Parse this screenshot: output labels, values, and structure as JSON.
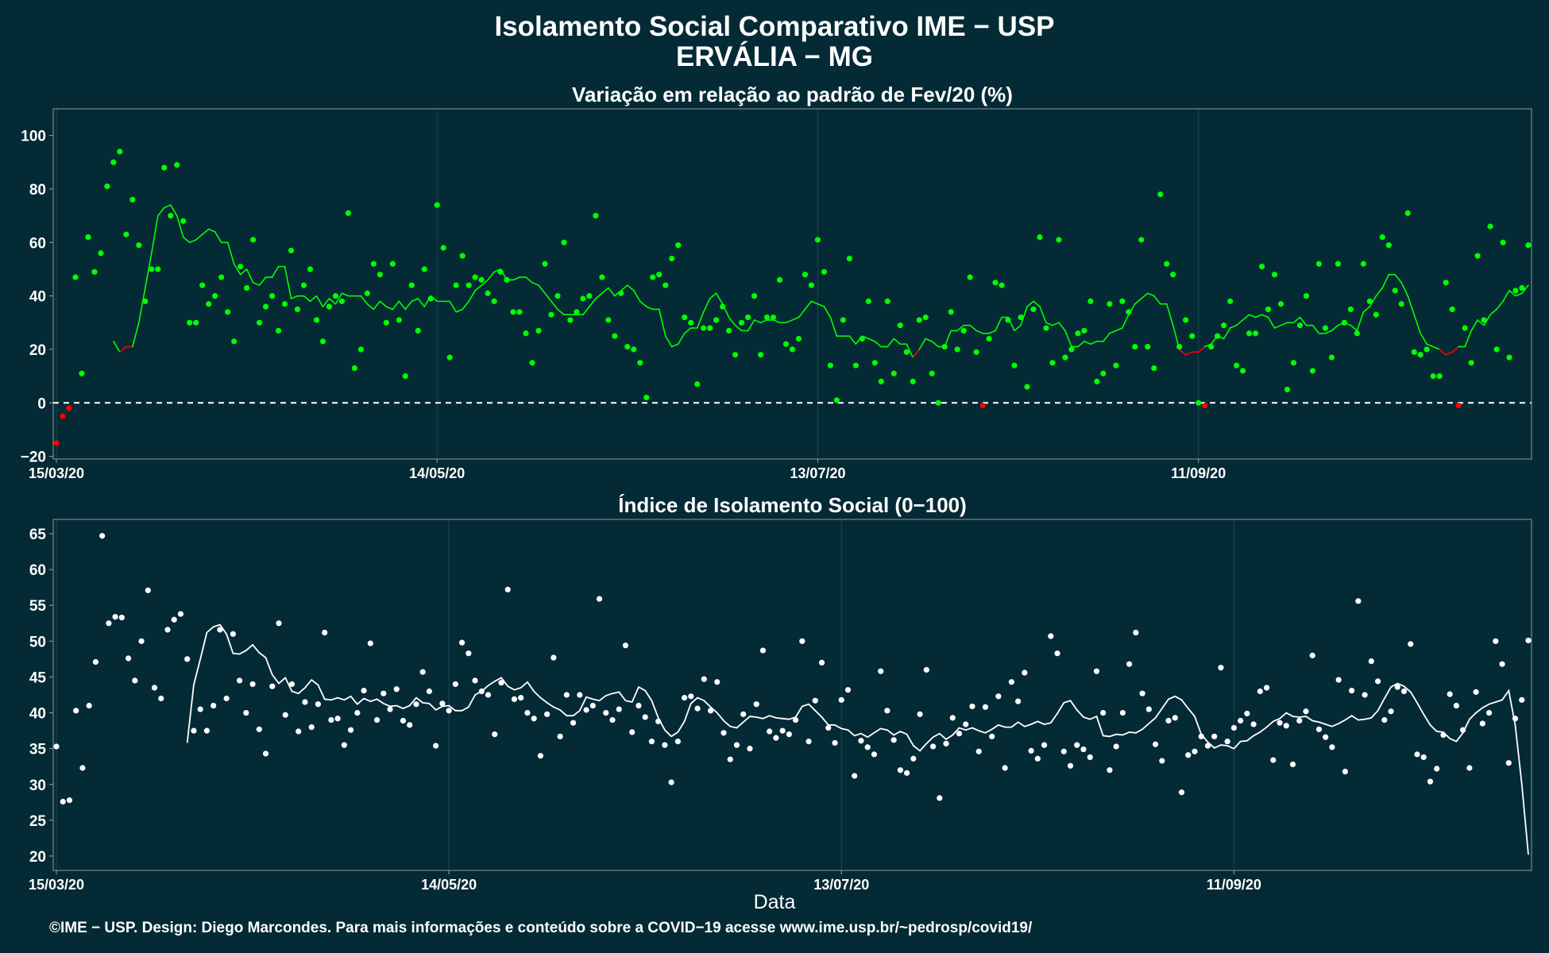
{
  "header": {
    "title": "Isolamento Social Comparativo IME − USP",
    "subtitle": "ERVÁLIA − MG"
  },
  "xlabel": "Data",
  "footer": "©IME − USP. Design: Diego Marcondes. Para mais informações e conteúdo sobre a COVID−19 acesse www.ime.usp.br/~pedrosp/covid19/",
  "colors": {
    "background": "#042a35",
    "positive_points": "#00ff00",
    "negative_points": "#ff0000",
    "index_points": "#ffffff"
  },
  "chart_data": [
    {
      "type": "scatter",
      "title": "Variação em relação ao padrão de Fev/20 (%)",
      "x_start": "2020-03-15",
      "xticks": [
        "15/03/20",
        "14/05/20",
        "13/07/20",
        "11/09/20"
      ],
      "ylim": [
        -21,
        110
      ],
      "yticks": [
        -20,
        0,
        20,
        40,
        60,
        80,
        100
      ],
      "reference_line": 0,
      "grid": true,
      "values": [
        -15,
        -5,
        -2,
        47,
        11,
        62,
        49,
        56,
        81,
        90,
        94,
        63,
        76,
        59,
        38,
        50,
        50,
        88,
        70,
        89,
        68,
        30,
        30,
        44,
        37,
        40,
        47,
        34,
        23,
        51,
        43,
        61,
        30,
        36,
        40,
        27,
        37,
        57,
        35,
        44,
        50,
        31,
        23,
        36,
        40,
        38,
        71,
        13,
        20,
        41,
        52,
        48,
        30,
        52,
        31,
        10,
        44,
        27,
        50,
        39,
        74,
        58,
        17,
        44,
        55,
        44,
        47,
        46,
        41,
        38,
        49,
        46,
        34,
        34,
        26,
        15,
        27,
        52,
        33,
        40,
        60,
        31,
        34,
        39,
        40,
        70,
        47,
        31,
        25,
        41,
        21,
        20,
        15,
        2,
        47,
        48,
        44,
        54,
        59,
        32,
        30,
        7,
        28,
        28,
        31,
        36,
        27,
        18,
        30,
        32,
        40,
        18,
        32,
        32,
        46,
        22,
        20,
        24,
        48,
        44,
        61,
        49,
        14,
        1,
        31,
        54,
        14,
        24,
        38,
        15,
        8,
        38,
        11,
        29,
        19,
        8,
        31,
        32,
        11,
        0,
        21,
        34,
        20,
        27,
        47,
        19,
        -1,
        24,
        45,
        44,
        31,
        14,
        32,
        6,
        35,
        62,
        28,
        15,
        61,
        17,
        20,
        26,
        27,
        38,
        8,
        11,
        37,
        14,
        38,
        34,
        21,
        61,
        21,
        13,
        78,
        52,
        48,
        21,
        31,
        25,
        0,
        -1,
        21,
        25,
        29,
        38,
        14,
        12,
        26,
        26,
        51,
        35,
        48,
        37,
        5,
        15,
        29,
        40,
        12,
        52,
        28,
        17,
        52,
        30,
        35,
        26,
        52,
        38,
        33,
        62,
        59,
        42,
        37,
        71,
        19,
        18,
        20,
        10,
        10,
        45,
        35,
        -1,
        28,
        15,
        55,
        31,
        66,
        20,
        60,
        17,
        42,
        43,
        59
      ],
      "moving_average": [
        23,
        19,
        21,
        21,
        30,
        43,
        56,
        70,
        73,
        74,
        70,
        62,
        60,
        61,
        63,
        65,
        64,
        60,
        60,
        52,
        48,
        50,
        45,
        44,
        47,
        47,
        51,
        51,
        39,
        40,
        40,
        38,
        40,
        36,
        39,
        37,
        41,
        40,
        40,
        40,
        37,
        35,
        38,
        36,
        35,
        38,
        35,
        38,
        39,
        36,
        40,
        38,
        38,
        38,
        34,
        35,
        38,
        42,
        44,
        46,
        49,
        50,
        46,
        46,
        47,
        47,
        45,
        44,
        41,
        38,
        35,
        33,
        33,
        33,
        33,
        36,
        39,
        41,
        43,
        40,
        42,
        44,
        42,
        38,
        36,
        35,
        35,
        25,
        21,
        22,
        26,
        28,
        28,
        34,
        39,
        41,
        37,
        32,
        29,
        27,
        27,
        31,
        30,
        31,
        31,
        30,
        30,
        31,
        32,
        35,
        38,
        37,
        36,
        32,
        25,
        25,
        25,
        22,
        25,
        24,
        23,
        21,
        21,
        24,
        22,
        22,
        17,
        20,
        24,
        23,
        21,
        21,
        27,
        27,
        29,
        29,
        27,
        26,
        26,
        27,
        32,
        32,
        27,
        29,
        36,
        38,
        36,
        30,
        29,
        30,
        27,
        21,
        21,
        23,
        22,
        23,
        23,
        26,
        27,
        28,
        33,
        37,
        39,
        41,
        40,
        37,
        37,
        29,
        20,
        18,
        19,
        19,
        21,
        22,
        25,
        24,
        28,
        29,
        31,
        33,
        32,
        33,
        32,
        28,
        29,
        30,
        30,
        32,
        29,
        29,
        26,
        26,
        27,
        29,
        30,
        29,
        27,
        34,
        36,
        40,
        43,
        48,
        48,
        45,
        40,
        33,
        26,
        22,
        21,
        20,
        18,
        19,
        21,
        21,
        27,
        31,
        29,
        33,
        35,
        38,
        42,
        40,
        41,
        44
      ]
    },
    {
      "type": "scatter",
      "title": "Índice de Isolamento Social (0−100)",
      "x_start": "2020-03-15",
      "xticks": [
        "15/03/20",
        "14/05/20",
        "13/07/20",
        "11/09/20"
      ],
      "ylim": [
        18,
        67
      ],
      "yticks": [
        20,
        25,
        30,
        35,
        40,
        45,
        50,
        55,
        60,
        65
      ],
      "grid": true,
      "values": [
        35.3,
        27.6,
        27.8,
        40.3,
        32.3,
        41.0,
        47.1,
        64.7,
        52.5,
        53.4,
        53.3,
        47.6,
        44.5,
        50.0,
        57.1,
        43.5,
        42.0,
        51.6,
        53.0,
        53.8,
        47.5,
        37.5,
        40.5,
        37.5,
        41.0,
        51.6,
        42.0,
        51.0,
        44.5,
        40.0,
        44.0,
        37.7,
        34.3,
        43.7,
        52.5,
        39.7,
        44.0,
        37.4,
        41.5,
        38.0,
        41.2,
        51.2,
        39.0,
        39.2,
        35.5,
        37.6,
        40.0,
        43.1,
        49.7,
        39.0,
        42.7,
        40.5,
        43.3,
        38.9,
        38.3,
        41.2,
        45.7,
        43.0,
        35.4,
        41.3,
        40.3,
        44.0,
        49.8,
        48.3,
        44.5,
        43.0,
        42.5,
        37.0,
        44.2,
        57.2,
        41.9,
        42.1,
        40.0,
        39.2,
        34.0,
        39.8,
        47.7,
        36.7,
        42.5,
        38.6,
        42.5,
        40.4,
        41.0,
        55.9,
        40.0,
        39.0,
        40.5,
        49.4,
        37.3,
        41.0,
        39.4,
        36.0,
        38.8,
        35.5,
        30.3,
        36.0,
        42.1,
        42.3,
        40.6,
        44.7,
        40.3,
        44.3,
        37.2,
        33.5,
        35.5,
        39.8,
        35.0,
        41.2,
        48.7,
        37.4,
        36.5,
        37.5,
        37.0,
        39.0,
        50.0,
        36.0,
        41.7,
        47.0,
        37.9,
        35.8,
        41.8,
        43.2,
        31.2,
        36.1,
        35.2,
        34.2,
        45.8,
        40.3,
        36.2,
        32.0,
        31.6,
        33.6,
        39.8,
        46.0,
        35.3,
        28.1,
        35.7,
        39.3,
        37.1,
        38.4,
        40.9,
        34.6,
        40.8,
        36.7,
        42.3,
        32.3,
        44.3,
        41.6,
        45.6,
        34.7,
        33.6,
        35.5,
        50.7,
        48.3,
        34.6,
        32.6,
        35.5,
        34.9,
        33.8,
        45.8,
        40.0,
        32.0,
        35.3,
        40.0,
        46.8,
        51.2,
        42.7,
        40.5,
        35.6,
        33.3,
        38.9,
        39.3,
        28.9,
        34.1,
        34.6,
        36.7,
        35.4,
        36.7,
        46.3,
        36.0,
        37.9,
        38.9,
        39.9,
        38.4,
        43.0,
        43.5,
        33.4,
        38.6,
        38.2,
        32.8,
        38.9,
        40.2,
        48.0,
        37.7,
        36.6,
        35.2,
        44.6,
        31.8,
        43.1,
        55.6,
        42.5,
        47.2,
        44.4,
        39.0,
        40.2,
        43.6,
        43.0,
        49.6,
        34.2,
        33.8,
        30.4,
        32.2,
        36.9,
        42.6,
        41.0,
        37.6,
        32.3,
        42.9,
        38.5,
        40.0,
        50.0,
        46.8,
        33.0,
        39.2,
        41.8,
        50.1
      ],
      "moving_average": [
        35.8,
        43.9,
        47.5,
        51.2,
        52.0,
        52.3,
        51.0,
        48.3,
        48.2,
        48.7,
        49.5,
        48.4,
        47.7,
        45.3,
        44.1,
        44.9,
        43.0,
        42.7,
        43.5,
        44.6,
        43.9,
        41.9,
        41.8,
        42.1,
        41.8,
        42.3,
        41.2,
        42.0,
        41.6,
        41.9,
        41.3,
        40.9,
        41.0,
        40.6,
        41.0,
        42.1,
        41.4,
        41.3,
        40.4,
        40.9,
        41.0,
        40.3,
        40.3,
        40.8,
        42.5,
        43.0,
        43.8,
        44.4,
        44.9,
        43.7,
        43.2,
        43.5,
        44.3,
        43.0,
        42.1,
        41.4,
        40.8,
        40.4,
        39.6,
        39.6,
        40.3,
        42.2,
        41.9,
        41.7,
        42.4,
        42.7,
        42.9,
        41.7,
        41.5,
        43.6,
        43.1,
        41.7,
        39.3,
        37.6,
        36.7,
        37.3,
        38.8,
        41.3,
        42.1,
        41.7,
        40.8,
        40.0,
        38.9,
        38.1,
        37.9,
        38.7,
        39.5,
        39.4,
        39.2,
        39.6,
        39.3,
        39.2,
        39.1,
        39.4,
        40.9,
        41.2,
        40.3,
        39.4,
        38.3,
        38.3,
        37.8,
        37.6,
        36.8,
        37.1,
        36.6,
        37.2,
        37.8,
        37.6,
        36.9,
        37.4,
        37.0,
        35.4,
        34.7,
        35.7,
        36.6,
        37.1,
        36.3,
        36.9,
        37.9,
        37.6,
        37.9,
        37.5,
        37.2,
        37.7,
        38.3,
        38.0,
        38.0,
        38.7,
        38.1,
        38.4,
        38.8,
        38.4,
        38.6,
        39.9,
        41.4,
        41.7,
        40.4,
        39.4,
        39.1,
        39.5,
        36.8,
        36.7,
        37.0,
        36.9,
        37.3,
        37.2,
        37.7,
        38.5,
        39.3,
        40.6,
        41.9,
        42.3,
        41.8,
        40.6,
        39.5,
        37.0,
        35.9,
        35.1,
        35.5,
        35.4,
        35.0,
        36.0,
        36.1,
        36.8,
        37.3,
        38.0,
        38.8,
        39.2,
        40.0,
        39.5,
        39.4,
        39.5,
        38.9,
        38.7,
        38.4,
        38.1,
        38.5,
        39.0,
        39.6,
        39.0,
        39.1,
        39.3,
        40.3,
        42.0,
        43.6,
        44.1,
        43.7,
        42.9,
        41.4,
        39.8,
        38.3,
        37.4,
        37.3,
        36.4,
        36.0,
        37.2,
        39.1,
        40.0,
        40.7,
        41.2,
        41.5,
        41.8,
        43.1,
        38.3,
        30.0,
        20.2
      ]
    }
  ]
}
